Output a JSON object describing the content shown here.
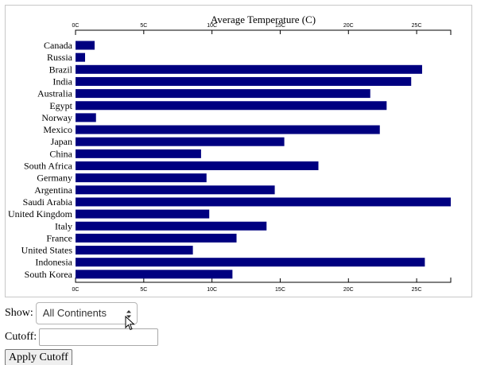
{
  "chart_data": {
    "type": "bar",
    "orientation": "horizontal",
    "title": "Average Temperature (C)",
    "xlim": [
      0,
      27.5
    ],
    "x_ticks": [
      {
        "value": 0,
        "label": "0C"
      },
      {
        "value": 5,
        "label": "5C"
      },
      {
        "value": 10,
        "label": "10C"
      },
      {
        "value": 15,
        "label": "15C"
      },
      {
        "value": 20,
        "label": "20C"
      },
      {
        "value": 25,
        "label": "25C"
      }
    ],
    "bar_color": "#000080",
    "grid": false,
    "categories": [
      "Canada",
      "Russia",
      "Brazil",
      "India",
      "Australia",
      "Egypt",
      "Norway",
      "Mexico",
      "Japan",
      "China",
      "South Africa",
      "Germany",
      "Argentina",
      "Saudi Arabia",
      "United Kingdom",
      "Italy",
      "France",
      "United States",
      "Indonesia",
      "South Korea"
    ],
    "values": [
      1.4,
      0.7,
      25.4,
      24.6,
      21.6,
      22.8,
      1.5,
      22.3,
      15.3,
      9.2,
      17.8,
      9.6,
      14.6,
      27.5,
      9.8,
      14.0,
      11.8,
      8.6,
      25.6,
      11.5
    ]
  },
  "controls": {
    "show_label": "Show:",
    "show_value": "All Continents",
    "cutoff_label": "Cutoff:",
    "cutoff_value": "",
    "apply_label": "Apply Cutoff"
  }
}
